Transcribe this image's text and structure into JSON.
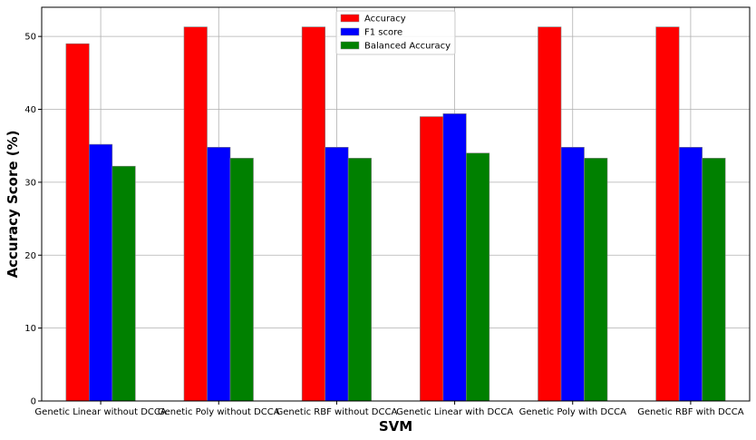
{
  "chart_data": {
    "type": "bar",
    "title": "",
    "xlabel": "SVM",
    "ylabel": "Accuracy Score (%)",
    "ylim": [
      0,
      54
    ],
    "yticks": [
      0,
      10,
      20,
      30,
      40,
      50
    ],
    "grid": true,
    "legend_position": "top-center",
    "categories": [
      "Genetic Linear without DCCA",
      "Genetic Poly without DCCA",
      "Genetic RBF without DCCA",
      "Genetic Linear with DCCA",
      "Genetic Poly with DCCA",
      "Genetic RBF with DCCA"
    ],
    "series": [
      {
        "name": "Accuracy",
        "color": "#ff0000",
        "values": [
          49.0,
          51.3,
          51.3,
          39.0,
          51.3,
          51.3
        ]
      },
      {
        "name": "F1 score",
        "color": "#0000ff",
        "values": [
          35.2,
          34.8,
          34.8,
          39.4,
          34.8,
          34.8
        ]
      },
      {
        "name": "Balanced Accuracy",
        "color": "#008000",
        "values": [
          32.2,
          33.3,
          33.3,
          34.0,
          33.3,
          33.3
        ]
      }
    ]
  }
}
